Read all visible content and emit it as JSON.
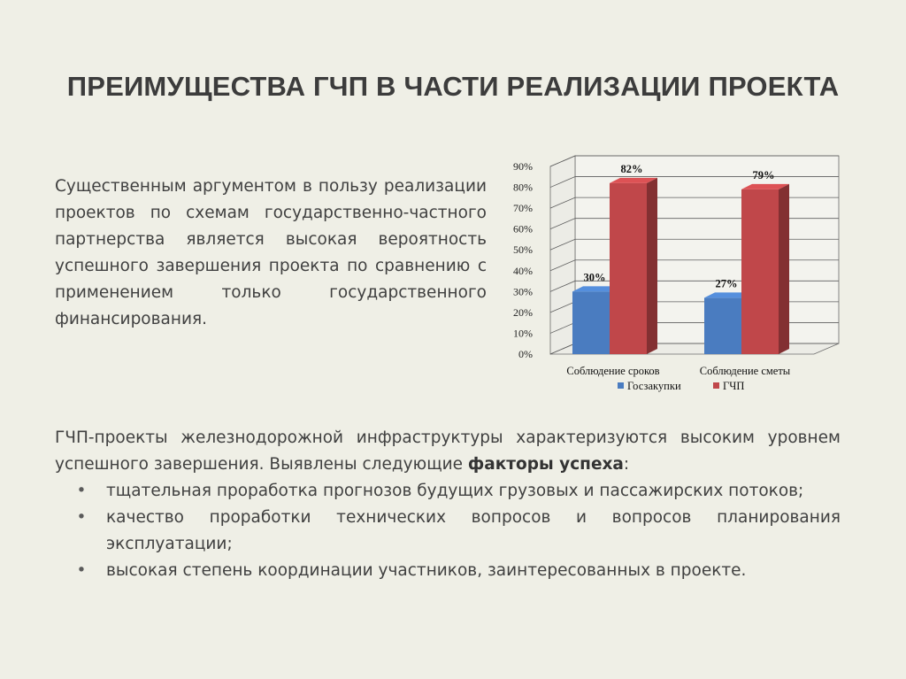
{
  "slide": {
    "title": "ПРЕИМУЩЕСТВА ГЧП В ЧАСТИ РЕАЛИЗАЦИИ ПРОЕКТА",
    "intro": "Существенным аргументом в пользу реализации проектов по схемам государственно-частного партнерства является высокая вероятность успешного завершения проекта по сравнению с применением только государственного финансирования.",
    "lower_before": "ГЧП-проекты железнодорожной инфраструктуры характеризуются высоким уровнем успешного завершения. Выявлены следующие ",
    "lower_bold": "факторы успеха",
    "lower_after": ":",
    "bullet_glyph": "•",
    "bullets": [
      "тщательная проработка прогнозов будущих грузовых и пассажирских потоков;",
      "качество проработки технических вопросов и вопросов планирования эксплуатации;",
      "высокая степень координации участников, заинтересованных в проекте."
    ]
  },
  "chart_data": {
    "type": "bar",
    "categories": [
      "Соблюдение сроков",
      "Соблюдение сметы"
    ],
    "series": [
      {
        "name": "Госзакупки",
        "values": [
          30,
          27
        ],
        "labels": [
          "30%",
          "27%"
        ],
        "color": "#4a7cc0"
      },
      {
        "name": "ГЧП",
        "values": [
          82,
          79
        ],
        "labels": [
          "82%",
          "79%"
        ],
        "color": "#c0474a"
      }
    ],
    "ylim": [
      0,
      90
    ],
    "yticks": [
      "0%",
      "10%",
      "20%",
      "30%",
      "40%",
      "50%",
      "60%",
      "70%",
      "80%",
      "90%"
    ],
    "grid": true,
    "legend_position": "bottom",
    "style_3d": true
  }
}
